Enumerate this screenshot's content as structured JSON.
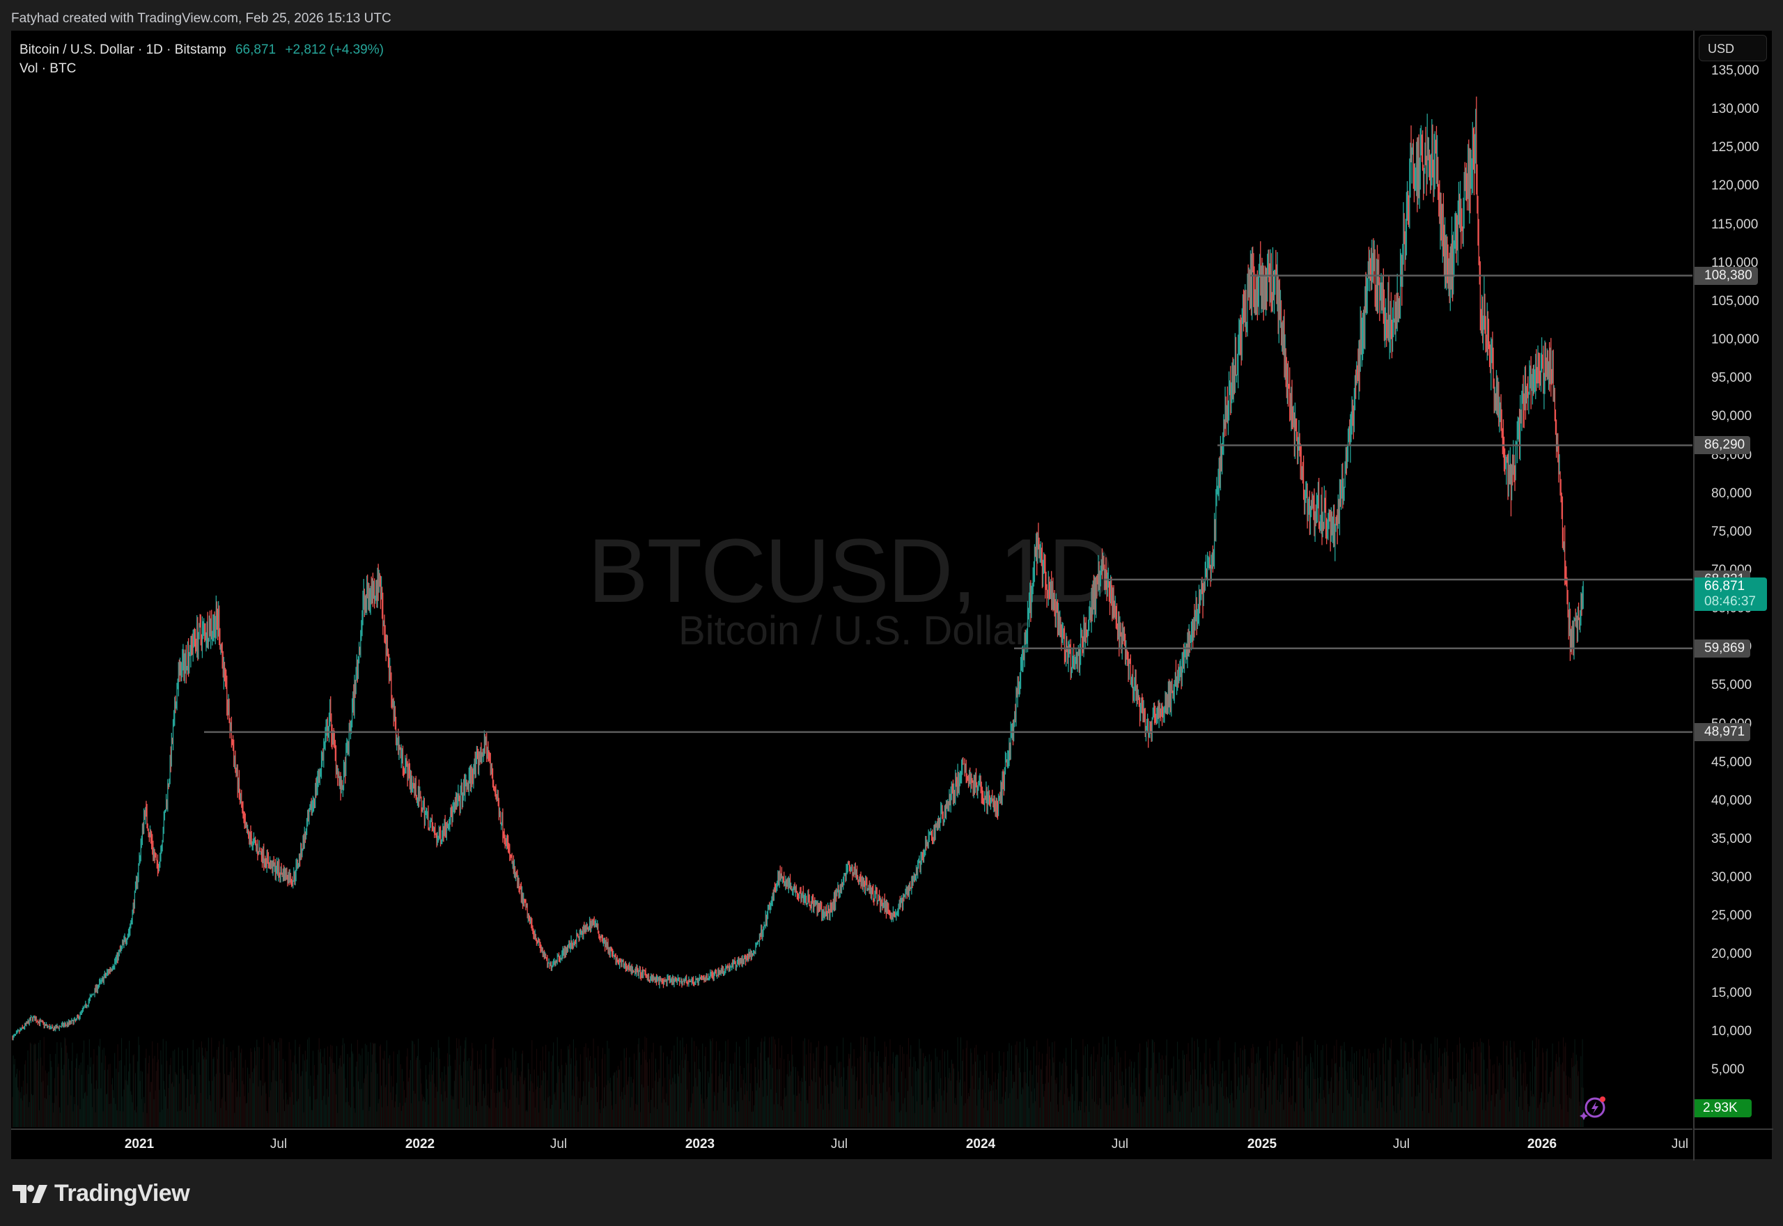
{
  "attribution": "Fatyhad created with TradingView.com, Feb 25, 2026 15:13 UTC",
  "legend": {
    "title": "Bitcoin / U.S. Dollar · 1D · Bitstamp",
    "price": "66,871",
    "change": "+2,812 (+4.39%)",
    "volume": "Vol · BTC"
  },
  "watermark": {
    "symbol": "BTCUSD, 1D",
    "description": "Bitcoin / U.S. Dollar"
  },
  "price_axis": {
    "currency": "USD"
  },
  "horizontal_levels": [
    {
      "value": 108380,
      "label": "108,380",
      "start_x": 1795
    },
    {
      "value": 86290,
      "label": "86,290",
      "start_x": 1748
    },
    {
      "value": 68821,
      "label": "68,821",
      "start_x": 1585
    },
    {
      "value": 59869,
      "label": "59,869",
      "start_x": 1456
    },
    {
      "value": 48971,
      "label": "48,971",
      "start_x": 293
    }
  ],
  "current_price": {
    "label": "66,871",
    "countdown": "08:46:37",
    "value": 66871
  },
  "volume_label": "2.93K",
  "footer": {
    "brand": "TradingView"
  },
  "colors": {
    "up": "#26a69a",
    "down": "#ef5350",
    "level_line": "#5d5d5d",
    "current_bg": "#089981",
    "volume_bg": "#0b8a1f",
    "background": "#000000"
  },
  "chart_data": {
    "type": "candlestick",
    "title": "Bitcoin / U.S. Dollar · 1D · Bitstamp",
    "xlabel": "",
    "ylabel": "USD",
    "ylim": [
      0,
      137000
    ],
    "grid": false,
    "x_ticks": [
      "2021",
      "Jul",
      "2022",
      "Jul",
      "2023",
      "Jul",
      "2024",
      "Jul",
      "2025",
      "Jul",
      "2026",
      "Jul"
    ],
    "y_ticks": [
      5000,
      10000,
      15000,
      20000,
      25000,
      30000,
      35000,
      40000,
      45000,
      50000,
      55000,
      60000,
      65000,
      70000,
      75000,
      80000,
      85000,
      90000,
      95000,
      100000,
      105000,
      110000,
      115000,
      120000,
      125000,
      130000,
      135000
    ],
    "y_tick_labels": [
      "5,000",
      "10,000",
      "15,000",
      "20,000",
      "25,000",
      "30,000",
      "35,000",
      "40,000",
      "45,000",
      "50,000",
      "55,000",
      "60,000",
      "65,000",
      "70,000",
      "75,000",
      "80,000",
      "85,000",
      "90,000",
      "95,000",
      "100,000",
      "105,000",
      "110,000",
      "115,000",
      "120,000",
      "125,000",
      "130,000",
      "135,000"
    ],
    "price_path": {
      "x": [
        "2020-07-20",
        "2020-08-15",
        "2020-09-10",
        "2020-10-10",
        "2020-11-05",
        "2020-12-01",
        "2020-12-20",
        "2021-01-08",
        "2021-01-25",
        "2021-02-20",
        "2021-03-13",
        "2021-04-14",
        "2021-05-19",
        "2021-06-22",
        "2021-07-20",
        "2021-09-06",
        "2021-09-21",
        "2021-10-20",
        "2021-11-10",
        "2021-12-04",
        "2022-01-24",
        "2022-03-28",
        "2022-05-12",
        "2022-06-18",
        "2022-08-14",
        "2022-09-15",
        "2022-11-09",
        "2022-12-30",
        "2023-03-10",
        "2023-04-14",
        "2023-06-15",
        "2023-07-13",
        "2023-09-11",
        "2023-10-24",
        "2023-12-08",
        "2024-01-23",
        "2024-03-14",
        "2024-05-01",
        "2024-06-07",
        "2024-08-05",
        "2024-09-06",
        "2024-10-29",
        "2024-11-12",
        "2024-12-17",
        "2025-01-20",
        "2025-02-28",
        "2025-04-07",
        "2025-05-22",
        "2025-06-22",
        "2025-07-14",
        "2025-08-14",
        "2025-09-01",
        "2025-10-06",
        "2025-10-10",
        "2025-11-21",
        "2025-12-10",
        "2026-01-14",
        "2026-02-05",
        "2026-02-06",
        "2026-02-24"
      ],
      "close": [
        9200,
        11800,
        10300,
        11400,
        15500,
        19200,
        23500,
        39000,
        31000,
        56000,
        61000,
        63500,
        36000,
        31500,
        29800,
        51000,
        41000,
        66000,
        68700,
        47000,
        35000,
        47500,
        28000,
        18500,
        24400,
        19000,
        16500,
        16600,
        20000,
        30400,
        25100,
        31500,
        25100,
        34500,
        44000,
        39000,
        73000,
        57000,
        71000,
        49100,
        53900,
        72500,
        89000,
        108000,
        106500,
        79000,
        75000,
        111000,
        100000,
        122500,
        124000,
        108000,
        126000,
        108000,
        81000,
        94000,
        97000,
        63000,
        60000,
        66871
      ]
    },
    "annotations": [
      "Horizontal levels: 108,380 / 86,290 / 68,821 / 59,869 / 48,971",
      "Last price 66,871 (+2,812, +4.39%)",
      "Volume 2.93K BTC"
    ]
  }
}
